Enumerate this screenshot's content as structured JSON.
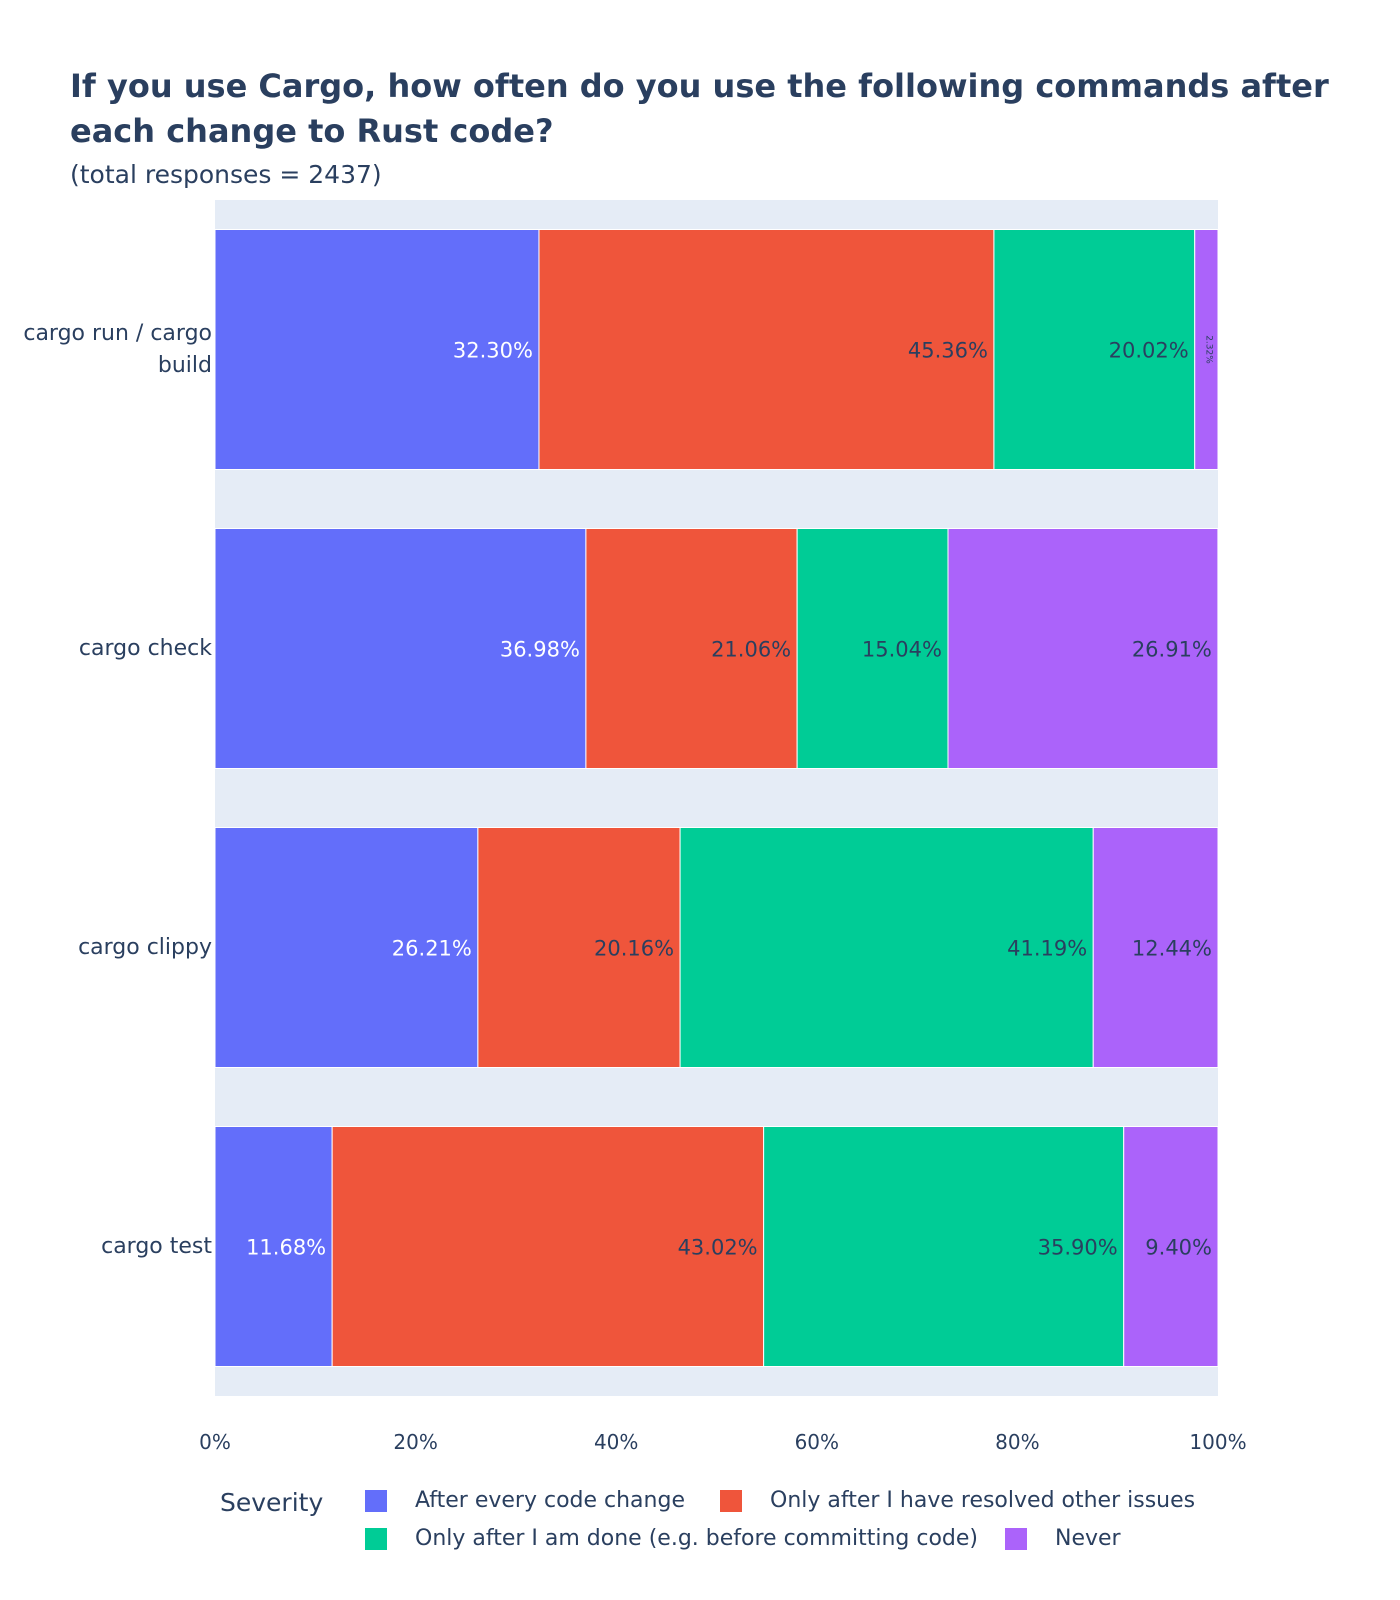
{
  "chart_data": {
    "type": "bar",
    "orientation": "horizontal",
    "stacked": true,
    "title": "If you use Cargo, how often do you use the following commands after each change to Rust code?",
    "subtitle": "(total responses = 2437)",
    "categories": [
      "cargo run / cargo build",
      "cargo check",
      "cargo clippy",
      "cargo test"
    ],
    "series": [
      {
        "name": "After every code change",
        "color": "#636efa",
        "label_color": "#ffffff",
        "values": [
          32.3,
          36.98,
          26.21,
          11.68
        ],
        "labels": [
          "32.30%",
          "36.98%",
          "26.21%",
          "11.68%"
        ]
      },
      {
        "name": "Only after I have resolved other issues",
        "color": "#ef553b",
        "label_color": "#2a3f5f",
        "values": [
          45.36,
          21.06,
          20.16,
          43.02
        ],
        "labels": [
          "45.36%",
          "21.06%",
          "20.16%",
          "43.02%"
        ]
      },
      {
        "name": "Only after I am done (e.g. before committing code)",
        "color": "#00cc96",
        "label_color": "#2a3f5f",
        "values": [
          20.02,
          15.04,
          41.19,
          35.9
        ],
        "labels": [
          "20.02%",
          "15.04%",
          "41.19%",
          "35.90%"
        ]
      },
      {
        "name": "Never",
        "color": "#ab63fa",
        "label_color": "#2a3f5f",
        "values": [
          2.32,
          26.91,
          12.44,
          9.4
        ],
        "labels": [
          "2.32%",
          "26.91%",
          "12.44%",
          "9.40%"
        ]
      }
    ],
    "xlim": [
      0,
      100
    ],
    "xticks": [
      "0%",
      "20%",
      "40%",
      "60%",
      "80%",
      "100%"
    ],
    "legend_title": "Severity",
    "legend_position": "bottom",
    "plot_background": "#e5ecf6",
    "grid": false
  }
}
